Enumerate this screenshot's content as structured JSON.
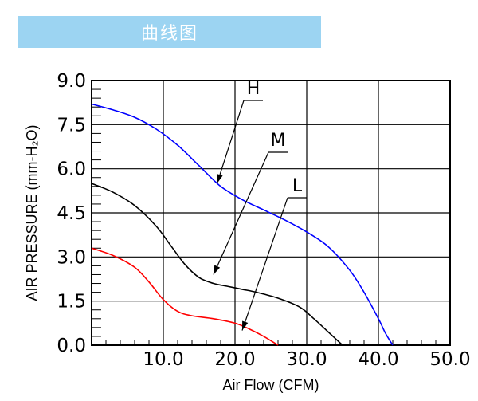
{
  "banner": {
    "title": "曲线图"
  },
  "chart_data": {
    "type": "line",
    "title": "曲线图",
    "xlabel": "Air Flow (CFM)",
    "ylabel": "AIR PRESSURE (mm-H₂O)",
    "xlim": [
      0,
      50
    ],
    "ylim": [
      0,
      9
    ],
    "xticks": [
      "10.0",
      "20.0",
      "30.0",
      "40.0",
      "50.0"
    ],
    "yticks": [
      "0.0",
      "1.5",
      "3.0",
      "4.5",
      "6.0",
      "7.5",
      "9.0"
    ],
    "grid": true,
    "series": [
      {
        "name": "H",
        "color": "#0000ff",
        "x": [
          0,
          3,
          6,
          9,
          12,
          15,
          18,
          21,
          24,
          27,
          30,
          33,
          36,
          38,
          40,
          41,
          42
        ],
        "y": [
          8.2,
          8.0,
          7.75,
          7.35,
          6.8,
          6.1,
          5.4,
          4.95,
          4.6,
          4.25,
          3.85,
          3.35,
          2.55,
          1.8,
          0.9,
          0.4,
          0.0
        ]
      },
      {
        "name": "M",
        "color": "#000000",
        "x": [
          0,
          3,
          6,
          9,
          11,
          13,
          15,
          17,
          19,
          21,
          23,
          26,
          29,
          31,
          33,
          35
        ],
        "y": [
          5.5,
          5.2,
          4.75,
          4.05,
          3.4,
          2.75,
          2.3,
          2.1,
          2.0,
          1.9,
          1.8,
          1.6,
          1.3,
          0.9,
          0.45,
          0.0
        ]
      },
      {
        "name": "L",
        "color": "#ff0000",
        "x": [
          0,
          3,
          6,
          8,
          10,
          12,
          14,
          17,
          20,
          22,
          24,
          26
        ],
        "y": [
          3.3,
          3.05,
          2.65,
          2.15,
          1.55,
          1.15,
          1.0,
          0.9,
          0.75,
          0.55,
          0.3,
          0.0
        ]
      }
    ],
    "markers": [
      {
        "label": "H",
        "target_x": 17.5,
        "target_y": 5.5
      },
      {
        "label": "M",
        "target_x": 17.0,
        "target_y": 2.4
      },
      {
        "label": "L",
        "target_x": 21.0,
        "target_y": 0.5
      }
    ]
  }
}
